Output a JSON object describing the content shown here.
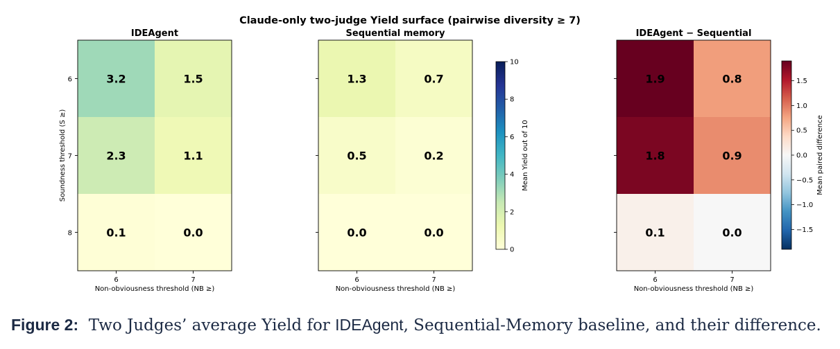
{
  "chart_data": {
    "type": "heatmap",
    "title": "Claude-only two-judge Yield surface (pairwise diversity ≥ 7)",
    "xlabel": "Non-obviousness threshold (NB ≥)",
    "ylabel": "Soundness threshold (S ≥)",
    "x_ticks": [
      "6",
      "7"
    ],
    "y_ticks": [
      "6",
      "7",
      "8"
    ],
    "panels": [
      {
        "title": "IDEAgent",
        "values": [
          [
            3.2,
            1.5
          ],
          [
            2.3,
            1.1
          ],
          [
            0.1,
            0.0
          ]
        ],
        "colormap": "YlGnBu",
        "show_ylabel": true,
        "show_xlabel": true
      },
      {
        "title": "Sequential memory",
        "values": [
          [
            1.3,
            0.7
          ],
          [
            0.5,
            0.2
          ],
          [
            0.0,
            0.0
          ]
        ],
        "colormap": "YlGnBu",
        "show_ylabel": false,
        "show_xlabel": true
      },
      {
        "title": "IDEAgent − Sequential",
        "values": [
          [
            1.9,
            0.8
          ],
          [
            1.8,
            0.9
          ],
          [
            0.1,
            0.0
          ]
        ],
        "colormap": "RdBu_r",
        "show_ylabel": false,
        "show_xlabel": true
      }
    ],
    "colorbars": [
      {
        "label": "Mean Yield out of 10",
        "range": [
          0,
          10
        ],
        "ticks": [
          0,
          2,
          4,
          6,
          8,
          10
        ],
        "colormap": "YlGnBu"
      },
      {
        "label": "Mean paired difference",
        "range": [
          -1.9,
          1.9
        ],
        "ticks": [
          1.5,
          1.0,
          0.5,
          0.0,
          -0.5,
          -1.0,
          -1.5
        ],
        "tick_labels": [
          "1.5",
          "1.0",
          "0.5",
          "0.0",
          "−0.5",
          "−1.0",
          "−1.5"
        ],
        "colormap": "RdBu_r"
      }
    ]
  },
  "caption": {
    "label": "Figure 2:",
    "text_1": "Two Judges’ average Yield for ",
    "system": "IDEAgent",
    "text_2": ", Sequential-Memory baseline, and their difference."
  }
}
